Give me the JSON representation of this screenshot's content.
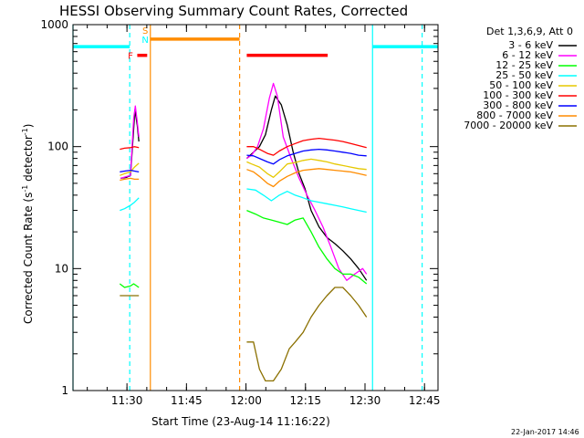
{
  "chart_data": {
    "type": "line",
    "title": "HESSI Observing Summary Count Rates, Corrected",
    "xlabel": "Start Time (23-Aug-14 11:16:22)",
    "ylabel_main": "Corrected Count Rate (s",
    "ylabel_sup1": "-1",
    "ylabel_mid": " detector",
    "ylabel_sup2": "-1",
    "ylabel_end": ")",
    "ylabel_full": "Corrected Count Rate (s-1 detector-1)",
    "y_scale": "log",
    "ylim": [
      1,
      1000
    ],
    "xlim_minutes": [
      0,
      92
    ],
    "x_ticks": [
      {
        "label": "11:30",
        "t": 13.6
      },
      {
        "label": "11:45",
        "t": 28.6
      },
      {
        "label": "12:00",
        "t": 43.6
      },
      {
        "label": "12:15",
        "t": 58.6
      },
      {
        "label": "12:30",
        "t": 73.6
      },
      {
        "label": "12:45",
        "t": 88.6
      }
    ],
    "y_ticks": [
      {
        "label": "1",
        "v": 1
      },
      {
        "label": "10",
        "v": 10
      },
      {
        "label": "100",
        "v": 100
      },
      {
        "label": "1000",
        "v": 1000
      }
    ],
    "legend_header": "Det 1,3,6,9, Att 0",
    "legend_position": "right",
    "series": [
      {
        "name": "3 - 6 keV",
        "color": "#000000",
        "segments": [
          [
            [
              12.0,
              55
            ],
            [
              13.5,
              56
            ],
            [
              14.5,
              58
            ],
            [
              15.3,
              140
            ],
            [
              15.6,
              200
            ],
            [
              16.2,
              150
            ],
            [
              16.6,
              110
            ]
          ],
          [
            [
              43.8,
              80
            ],
            [
              45.5,
              90
            ],
            [
              47,
              100
            ],
            [
              48.5,
              125
            ],
            [
              50,
              200
            ],
            [
              51,
              260
            ],
            [
              52.5,
              220
            ],
            [
              54,
              150
            ],
            [
              55.5,
              90
            ],
            [
              57,
              60
            ],
            [
              58.5,
              45
            ],
            [
              60,
              30
            ],
            [
              62,
              22
            ],
            [
              64,
              18
            ],
            [
              66,
              16
            ],
            [
              68,
              14
            ],
            [
              70,
              12
            ],
            [
              72,
              10
            ],
            [
              74,
              8
            ]
          ]
        ]
      },
      {
        "name": "6 - 12 keV",
        "color": "#ff00ff",
        "segments": [
          [
            [
              12.0,
              55
            ],
            [
              14.5,
              58
            ],
            [
              15.3,
              170
            ],
            [
              15.7,
              215
            ],
            [
              16.2,
              160
            ],
            [
              16.6,
              120
            ]
          ],
          [
            [
              43.8,
              80
            ],
            [
              45,
              85
            ],
            [
              46.5,
              100
            ],
            [
              48,
              140
            ],
            [
              49.5,
              250
            ],
            [
              50.5,
              330
            ],
            [
              51.5,
              260
            ],
            [
              53,
              120
            ],
            [
              55,
              80
            ],
            [
              57,
              55
            ],
            [
              59,
              40
            ],
            [
              61,
              30
            ],
            [
              63,
              22
            ],
            [
              65,
              15
            ],
            [
              67,
              10
            ],
            [
              69,
              8
            ],
            [
              71,
              9
            ],
            [
              73,
              10
            ],
            [
              74,
              9
            ]
          ]
        ]
      },
      {
        "name": "12 - 25 keV",
        "color": "#00ff00",
        "segments": [
          [
            [
              11.8,
              7.5
            ],
            [
              13,
              7
            ],
            [
              14.5,
              7.2
            ],
            [
              15.3,
              7.5
            ],
            [
              16.6,
              7
            ]
          ],
          [
            [
              43.8,
              30
            ],
            [
              46,
              28
            ],
            [
              48,
              26
            ],
            [
              50,
              25
            ],
            [
              52,
              24
            ],
            [
              54,
              23
            ],
            [
              56,
              25
            ],
            [
              58,
              26
            ],
            [
              60,
              20
            ],
            [
              62,
              15
            ],
            [
              64,
              12
            ],
            [
              66,
              10
            ],
            [
              68,
              9
            ],
            [
              70,
              9
            ],
            [
              72,
              8.5
            ],
            [
              74,
              7.5
            ]
          ]
        ]
      },
      {
        "name": "25 - 50 keV",
        "color": "#00ffff",
        "segments": [
          [
            [
              11.8,
              30
            ],
            [
              13,
              31
            ],
            [
              14.5,
              33
            ],
            [
              15.5,
              35
            ],
            [
              16.6,
              38
            ]
          ],
          [
            [
              43.8,
              45
            ],
            [
              46,
              44
            ],
            [
              48,
              40
            ],
            [
              50,
              36
            ],
            [
              52,
              40
            ],
            [
              54,
              43
            ],
            [
              56,
              40
            ],
            [
              58,
              38
            ],
            [
              60,
              36
            ],
            [
              62,
              35
            ],
            [
              64,
              34
            ],
            [
              66,
              33
            ],
            [
              68,
              32
            ],
            [
              70,
              31
            ],
            [
              72,
              30
            ],
            [
              74,
              29
            ]
          ]
        ]
      },
      {
        "name": "50 - 100 keV",
        "color": "#e6c800",
        "segments": [
          [
            [
              11.8,
              58
            ],
            [
              13,
              60
            ],
            [
              14.5,
              62
            ],
            [
              15.5,
              68
            ],
            [
              16.6,
              73
            ]
          ],
          [
            [
              43.8,
              75
            ],
            [
              45,
              72
            ],
            [
              47,
              68
            ],
            [
              49,
              60
            ],
            [
              50.5,
              56
            ],
            [
              52,
              62
            ],
            [
              54,
              72
            ],
            [
              56,
              74
            ],
            [
              58,
              77
            ],
            [
              60,
              79
            ],
            [
              62,
              77
            ],
            [
              64,
              75
            ],
            [
              66,
              72
            ],
            [
              68,
              70
            ],
            [
              70,
              68
            ],
            [
              72,
              66
            ],
            [
              74,
              65
            ]
          ]
        ]
      },
      {
        "name": "100 - 300 keV",
        "color": "#ff0000",
        "segments": [
          [
            [
              11.8,
              95
            ],
            [
              13,
              97
            ],
            [
              14.5,
              98
            ],
            [
              15.5,
              100
            ],
            [
              16.6,
              98
            ]
          ],
          [
            [
              43.8,
              100
            ],
            [
              45.5,
              100
            ],
            [
              47,
              95
            ],
            [
              49,
              88
            ],
            [
              50.5,
              85
            ],
            [
              52,
              92
            ],
            [
              54,
              100
            ],
            [
              56,
              106
            ],
            [
              58,
              112
            ],
            [
              60,
              115
            ],
            [
              62,
              117
            ],
            [
              64,
              115
            ],
            [
              66,
              113
            ],
            [
              68,
              110
            ],
            [
              70,
              106
            ],
            [
              72,
              102
            ],
            [
              74,
              98
            ]
          ]
        ]
      },
      {
        "name": "300 - 800 keV",
        "color": "#0000ff",
        "segments": [
          [
            [
              11.8,
              62
            ],
            [
              13,
              63
            ],
            [
              14.5,
              64
            ],
            [
              15.5,
              63
            ],
            [
              16.6,
              62
            ]
          ],
          [
            [
              43.8,
              85
            ],
            [
              45.5,
              84
            ],
            [
              47,
              80
            ],
            [
              49,
              75
            ],
            [
              50.5,
              72
            ],
            [
              52,
              78
            ],
            [
              54,
              84
            ],
            [
              56,
              88
            ],
            [
              58,
              92
            ],
            [
              60,
              94
            ],
            [
              62,
              95
            ],
            [
              64,
              94
            ],
            [
              66,
              92
            ],
            [
              68,
              90
            ],
            [
              70,
              88
            ],
            [
              72,
              85
            ],
            [
              74,
              84
            ]
          ]
        ]
      },
      {
        "name": "800 - 7000 keV",
        "color": "#ff8c00",
        "segments": [
          [
            [
              11.8,
              53
            ],
            [
              13,
              54
            ],
            [
              14.5,
              55
            ],
            [
              15.5,
              54
            ],
            [
              16.6,
              54
            ]
          ],
          [
            [
              43.8,
              65
            ],
            [
              45.5,
              62
            ],
            [
              47,
              57
            ],
            [
              49,
              50
            ],
            [
              50.5,
              47
            ],
            [
              52,
              52
            ],
            [
              54,
              57
            ],
            [
              56,
              61
            ],
            [
              58,
              64
            ],
            [
              60,
              65
            ],
            [
              62,
              66
            ],
            [
              64,
              65
            ],
            [
              66,
              64
            ],
            [
              68,
              63
            ],
            [
              70,
              62
            ],
            [
              72,
              60
            ],
            [
              74,
              58
            ]
          ]
        ]
      },
      {
        "name": "7000 - 20000 keV",
        "color": "#8b7000",
        "segments": [
          [
            [
              11.8,
              6
            ],
            [
              13,
              6
            ],
            [
              14.5,
              6
            ],
            [
              15.5,
              6
            ],
            [
              16.6,
              6
            ]
          ],
          [
            [
              43.8,
              2.5
            ],
            [
              45.5,
              2.5
            ],
            [
              47,
              1.5
            ],
            [
              48.5,
              1.2
            ],
            [
              50.5,
              1.2
            ],
            [
              52.5,
              1.5
            ],
            [
              54.5,
              2.2
            ],
            [
              56,
              2.5
            ],
            [
              58,
              3
            ],
            [
              60,
              4
            ],
            [
              62,
              5
            ],
            [
              64,
              6
            ],
            [
              66,
              7
            ],
            [
              68,
              7
            ],
            [
              70,
              6
            ],
            [
              72,
              5
            ],
            [
              74,
              4
            ]
          ]
        ]
      }
    ],
    "flag_bars": [
      {
        "label": "S",
        "color": "#ff8c00",
        "t_start": 19.5,
        "t_end": 42.0,
        "level": 760,
        "label_at": 18.2,
        "label_level": 900
      },
      {
        "label": "N",
        "color": "#00ffff",
        "t_start": 0,
        "t_end": 14.3,
        "level": 660,
        "label_at": 18.2,
        "label_level": 760
      },
      {
        "label": "N",
        "color": "#00ffff",
        "t_start": 75.5,
        "t_end": 92,
        "level": 660
      },
      {
        "label": "F",
        "color": "#ff0000",
        "t_start": 16.2,
        "t_end": 18.7,
        "level": 560,
        "label_at": 14.5,
        "label_level": 560
      },
      {
        "label": "F",
        "color": "#ff0000",
        "t_start": 43.8,
        "t_end": 64.2,
        "level": 560
      }
    ],
    "vlines": [
      {
        "t": 0,
        "color": "#00ffff",
        "style": "solid"
      },
      {
        "t": 14.3,
        "color": "#00ffff",
        "style": "dashed"
      },
      {
        "t": 19.5,
        "color": "#ff8c00",
        "style": "solid"
      },
      {
        "t": 42.0,
        "color": "#ff8c00",
        "style": "dashed"
      },
      {
        "t": 75.5,
        "color": "#00ffff",
        "style": "solid"
      },
      {
        "t": 88.0,
        "color": "#00ffff",
        "style": "dashed"
      }
    ]
  },
  "footer_date": "22-Jan-2017 14:46"
}
